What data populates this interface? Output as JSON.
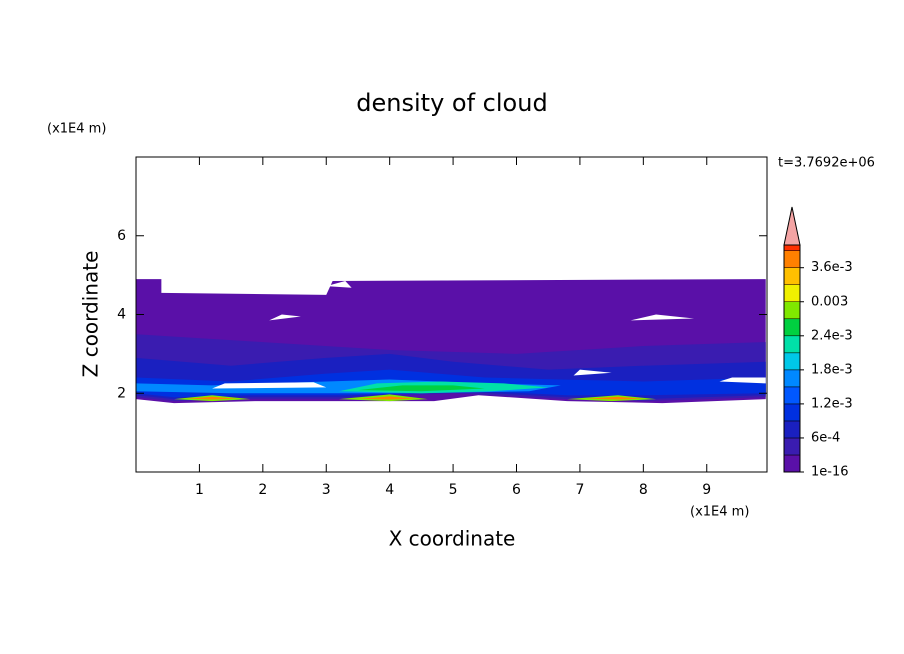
{
  "chart_data": {
    "type": "contour",
    "title": "density of cloud",
    "time_label": "t=3.7692e+06",
    "x_label": "X coordinate",
    "y_label": "Z coordinate",
    "x_unit": "(x1E4 m)",
    "y_unit": "(x1E4 m)",
    "xlim": [
      0,
      9.95
    ],
    "xticks": [
      1,
      2,
      3,
      4,
      5,
      6,
      7,
      8,
      9
    ],
    "ylim": [
      0,
      8
    ],
    "yticks": [
      2,
      4,
      6
    ],
    "clim": [
      1e-16,
      0.004
    ],
    "levels": [
      1e-16,
      0.0003,
      0.0006,
      0.0009,
      0.0012,
      0.0015,
      0.0018,
      0.0021,
      0.0024,
      0.0027,
      0.003,
      0.0033,
      0.0036,
      0.0039
    ],
    "colors": [
      "#5a10a8",
      "#3a1cb0",
      "#1a20c0",
      "#0030e0",
      "#0058ff",
      "#0088ff",
      "#00c8e8",
      "#00e0a8",
      "#00d040",
      "#80e800",
      "#f0f000",
      "#ffc000",
      "#ff8000",
      "#ff3000"
    ],
    "extend_color": "#f4a4a4",
    "cticks": [
      1e-16,
      {
        "value": 0.0006,
        "label": "6e-4"
      },
      {
        "value": 0.0012,
        "label": "1.2e-3"
      },
      {
        "value": 0.0018,
        "label": "1.8e-3"
      },
      {
        "value": 0.0024,
        "label": "2.4e-3"
      },
      0.003,
      {
        "value": 0.0036,
        "label": "3.6e-3"
      }
    ]
  }
}
